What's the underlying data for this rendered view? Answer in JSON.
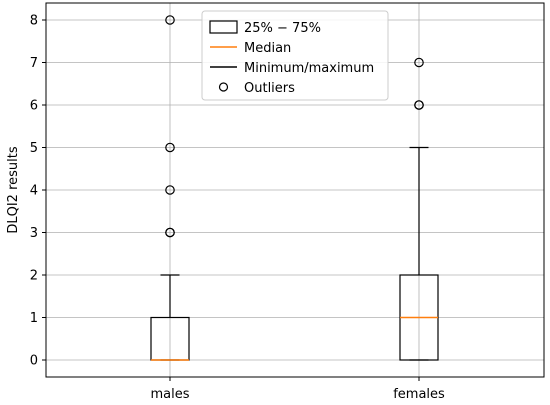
{
  "chart_data": {
    "type": "box",
    "title": "",
    "xlabel": "",
    "ylabel": "DLQI2 results",
    "ylim": [
      -0.4,
      8.4
    ],
    "yticks": [
      0,
      1,
      2,
      3,
      4,
      5,
      6,
      7,
      8
    ],
    "grid": true,
    "legend_position": "top-center",
    "categories": [
      "males",
      "females"
    ],
    "boxes": [
      {
        "category": "males",
        "q1": 0,
        "median": 0,
        "q3": 1,
        "whisker_low": 0,
        "whisker_high": 2,
        "outliers": [
          3,
          3,
          4,
          5,
          8
        ]
      },
      {
        "category": "females",
        "q1": 0,
        "median": 1,
        "q3": 2,
        "whisker_low": 0,
        "whisker_high": 5,
        "outliers": [
          6,
          6,
          7
        ]
      }
    ],
    "legend": {
      "box": "25% − 75%",
      "median": "Median",
      "whisker": "Minimum/maximum",
      "outliers": "Outliers"
    },
    "colors": {
      "box": "#000000",
      "median": "#ff7f0e",
      "grid": "#b0b0b0"
    }
  }
}
